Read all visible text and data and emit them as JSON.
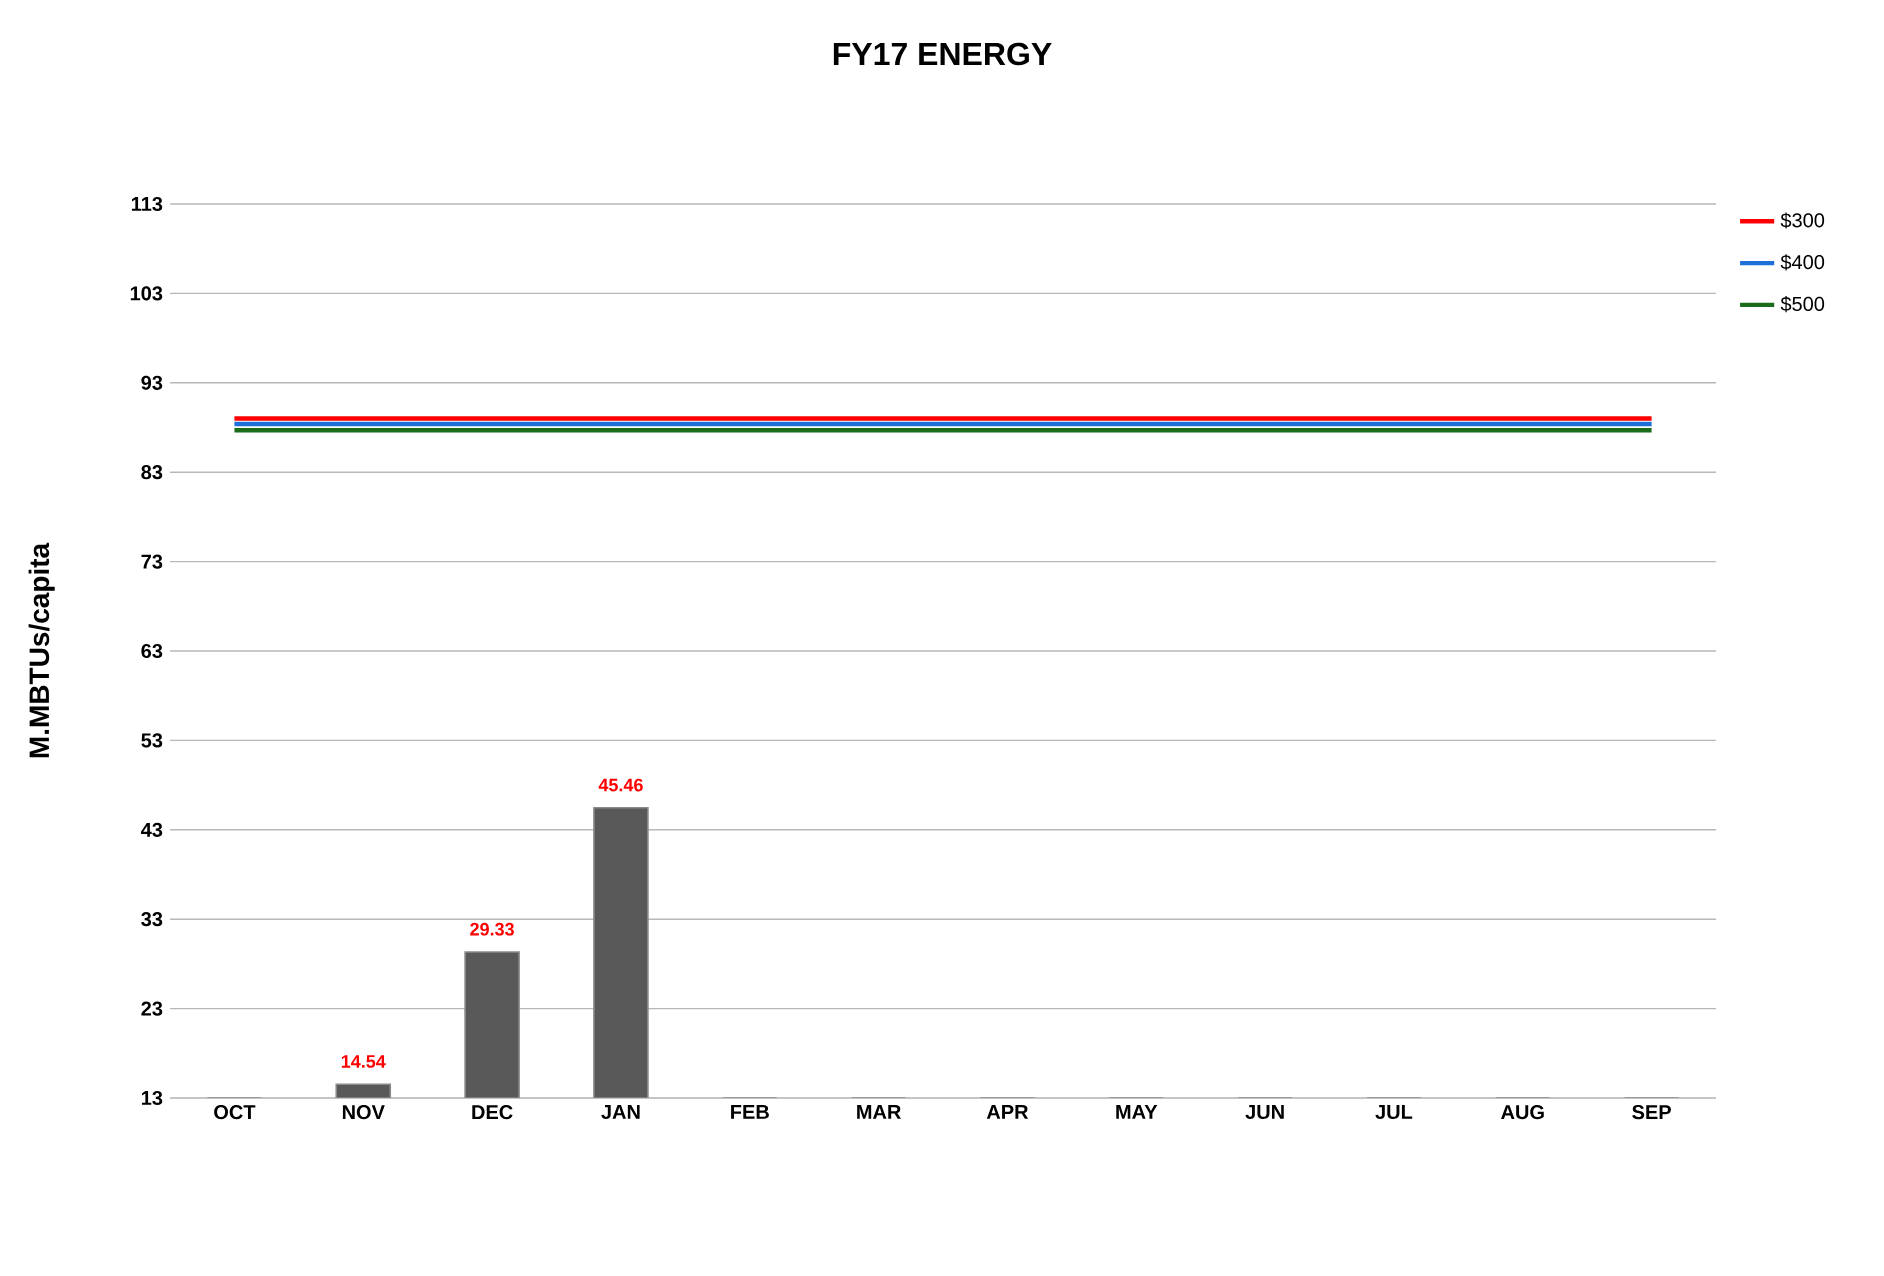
{
  "chart_data": {
    "type": "bar",
    "title": "FY17 ENERGY",
    "ylabel": "M.MBTUs/capita",
    "categories": [
      "OCT",
      "NOV",
      "DEC",
      "JAN",
      "FEB",
      "MAR",
      "APR",
      "MAY",
      "JUN",
      "JUL",
      "AUG",
      "SEP"
    ],
    "series": [
      {
        "color": "#595959",
        "values": [
          13,
          14.54,
          29.33,
          45.46,
          13,
          13,
          13,
          13,
          13,
          13,
          13,
          13
        ],
        "value_labels": [
          null,
          "14.54",
          "29.33",
          "45.46",
          null,
          null,
          null,
          null,
          null,
          null,
          null,
          null
        ]
      },
      {
        "type": "line",
        "name": "$300",
        "color": "#ff0000",
        "values": [
          89.0,
          89.0,
          89.0,
          89.0,
          89.0,
          89.0,
          89.0,
          89.0,
          89.0,
          89.0,
          89.0,
          89.0
        ]
      },
      {
        "type": "line",
        "name": "$400",
        "color": "#1f6fd8",
        "values": [
          88.4,
          88.4,
          88.4,
          88.4,
          88.4,
          88.4,
          88.4,
          88.4,
          88.4,
          88.4,
          88.4,
          88.4
        ]
      },
      {
        "type": "line",
        "name": "$500",
        "color": "#1a6b1a",
        "values": [
          87.7,
          87.7,
          87.7,
          87.7,
          87.7,
          87.7,
          87.7,
          87.7,
          87.7,
          87.7,
          87.7,
          87.7
        ]
      }
    ],
    "ylim": [
      13,
      113
    ],
    "yticks": [
      13,
      23,
      33,
      43,
      53,
      63,
      73,
      83,
      93,
      103,
      113
    ],
    "grid": "y",
    "legend": "top right",
    "marker": "none"
  }
}
